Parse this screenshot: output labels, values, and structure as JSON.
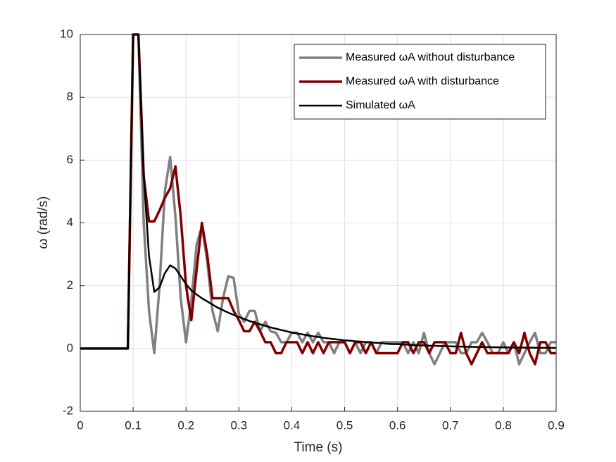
{
  "chart_data": {
    "type": "line",
    "xlabel": "Time (s)",
    "ylabel": "ω (rad/s)",
    "x": [
      0,
      0.01,
      0.02,
      0.03,
      0.04,
      0.05,
      0.06,
      0.07,
      0.08,
      0.09,
      0.1,
      0.11,
      0.12,
      0.13,
      0.14,
      0.15,
      0.16,
      0.17,
      0.18,
      0.19,
      0.2,
      0.21,
      0.22,
      0.23,
      0.24,
      0.25,
      0.26,
      0.27,
      0.28,
      0.29,
      0.3,
      0.31,
      0.32,
      0.33,
      0.34,
      0.35,
      0.36,
      0.37,
      0.38,
      0.39,
      0.4,
      0.41,
      0.42,
      0.43,
      0.44,
      0.45,
      0.46,
      0.47,
      0.48,
      0.49,
      0.5,
      0.51,
      0.52,
      0.53,
      0.54,
      0.55,
      0.56,
      0.57,
      0.58,
      0.59,
      0.6,
      0.61,
      0.62,
      0.63,
      0.64,
      0.65,
      0.66,
      0.67,
      0.68,
      0.69,
      0.7,
      0.71,
      0.72,
      0.73,
      0.74,
      0.75,
      0.76,
      0.77,
      0.78,
      0.79,
      0.8,
      0.81,
      0.82,
      0.83,
      0.84,
      0.85,
      0.86,
      0.87,
      0.88,
      0.89,
      0.9
    ],
    "series": [
      {
        "name": "Measured ωA without disturbance",
        "color": "#808080",
        "width": 3.5,
        "values": [
          0,
          0,
          0,
          0,
          0,
          0,
          0,
          0,
          0,
          0,
          10,
          10,
          4,
          1.2,
          -0.15,
          2.0,
          5.0,
          6.1,
          4.2,
          1.6,
          0.2,
          1.5,
          3.3,
          3.9,
          2.8,
          1.2,
          0.55,
          1.6,
          2.3,
          2.25,
          1.1,
          0.85,
          1.2,
          1.2,
          0.55,
          0.85,
          0.55,
          0.5,
          0.2,
          0.2,
          0.5,
          0.5,
          0.2,
          0.5,
          0.2,
          0.5,
          0.2,
          0.2,
          -0.15,
          0.2,
          0.2,
          -0.15,
          0.2,
          -0.15,
          0.2,
          0.2,
          -0.15,
          0.2,
          0.2,
          0.2,
          0.2,
          0.2,
          -0.15,
          0.2,
          -0.15,
          0.5,
          -0.15,
          -0.5,
          -0.15,
          0.2,
          0.2,
          0.2,
          -0.15,
          -0.15,
          0.2,
          0.2,
          0.5,
          0.2,
          -0.15,
          -0.15,
          0.2,
          -0.15,
          0.2,
          -0.5,
          -0.15,
          0.2,
          0.5,
          -0.15,
          -0.15,
          0.2,
          0.2
        ]
      },
      {
        "name": "Measured ωA with disturbance",
        "color": "#800000",
        "width": 3.5,
        "values": [
          0,
          0,
          0,
          0,
          0,
          0,
          0,
          0,
          0,
          0,
          10,
          10,
          5.5,
          4.05,
          4.05,
          4.4,
          4.8,
          5.1,
          5.8,
          4.2,
          2.0,
          0.9,
          2.5,
          4.0,
          3.0,
          1.6,
          1.6,
          1.6,
          1.6,
          1.2,
          0.9,
          0.55,
          0.55,
          0.85,
          0.55,
          0.2,
          0.2,
          -0.15,
          -0.15,
          0.2,
          0.2,
          0.2,
          -0.15,
          0.2,
          -0.15,
          0.2,
          -0.15,
          0.2,
          0.2,
          0.2,
          0.2,
          -0.15,
          0.2,
          0.2,
          -0.15,
          0.2,
          -0.15,
          -0.15,
          -0.15,
          -0.15,
          -0.15,
          0.2,
          0.2,
          -0.15,
          0.2,
          0.2,
          -0.15,
          0.2,
          0.2,
          0.2,
          -0.15,
          -0.15,
          0.5,
          -0.15,
          -0.5,
          -0.15,
          0.2,
          -0.15,
          -0.15,
          -0.15,
          -0.15,
          -0.15,
          0.2,
          -0.15,
          0.5,
          -0.15,
          -0.5,
          0.2,
          0.2,
          -0.15,
          -0.15
        ]
      },
      {
        "name": "Simulated ωA",
        "color": "#000000",
        "width": 2.5,
        "values": [
          0,
          0,
          0,
          0,
          0,
          0,
          0,
          0,
          0,
          0,
          10,
          10,
          5.5,
          2.95,
          1.8,
          1.95,
          2.4,
          2.65,
          2.55,
          2.3,
          2.05,
          1.85,
          1.72,
          1.6,
          1.5,
          1.4,
          1.3,
          1.22,
          1.14,
          1.07,
          1.0,
          0.94,
          0.875,
          0.82,
          0.77,
          0.72,
          0.67,
          0.63,
          0.59,
          0.55,
          0.51,
          0.48,
          0.45,
          0.42,
          0.39,
          0.37,
          0.34,
          0.32,
          0.3,
          0.28,
          0.26,
          0.25,
          0.23,
          0.22,
          0.2,
          0.19,
          0.18,
          0.17,
          0.15,
          0.14,
          0.14,
          0.13,
          0.12,
          0.11,
          0.1,
          0.1,
          0.09,
          0.085,
          0.08,
          0.075,
          0.07,
          0.065,
          0.06,
          0.057,
          0.053,
          0.05,
          0.047,
          0.044,
          0.041,
          0.038,
          0.036,
          0.034,
          0.031,
          0.029,
          0.027,
          0.026,
          0.024,
          0.022,
          0.021,
          0.02,
          0.018
        ]
      }
    ],
    "xlim": [
      0,
      0.9
    ],
    "ylim": [
      -2,
      10
    ],
    "xticks": [
      0,
      0.1,
      0.2,
      0.3,
      0.4,
      0.5,
      0.6,
      0.7,
      0.8,
      0.9
    ],
    "yticks": [
      -2,
      0,
      2,
      4,
      6,
      8,
      10
    ],
    "grid": true,
    "legend": "northeast"
  }
}
